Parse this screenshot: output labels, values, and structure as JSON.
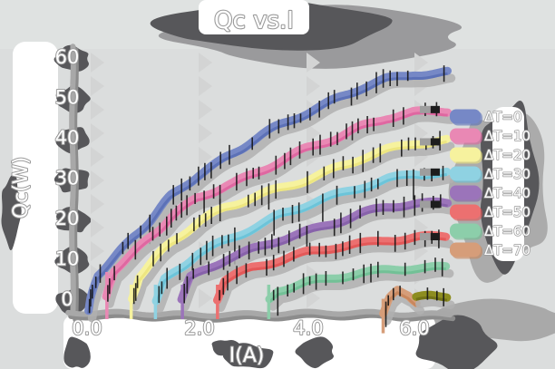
{
  "figure": {
    "background": "#dbdddd",
    "style_note": "hand-drawn sketch style, pastel thick lines with gray drop shadows, dark blobs behind white outlined text, black error-bar ticks along curves"
  },
  "chart_data": {
    "type": "line",
    "title": "Qc vs.I",
    "xlabel": "I(A)",
    "ylabel": "Qc(W)",
    "xticks": [
      "0.0",
      "2.0",
      "4.0",
      "6.0"
    ],
    "xtick_values": [
      0,
      2,
      4,
      6
    ],
    "yticks": [
      "0",
      "10",
      "20",
      "30",
      "40",
      "50",
      "60"
    ],
    "ytick_values": [
      0,
      10,
      20,
      30,
      40,
      50,
      60
    ],
    "xlim": [
      -0.35,
      6.7
    ],
    "ylim": [
      -3.5,
      63
    ],
    "grid": "faint sawtooth vertical gridlines at x ticks",
    "legend_position": "right",
    "error_bars": true,
    "series": [
      {
        "name": "ΔT=0",
        "color": "#7688c6",
        "edge": "#5a6fb5",
        "points": [
          [
            -0.05,
            -2.8
          ],
          [
            0,
            0
          ],
          [
            0.15,
            6
          ],
          [
            0.5,
            11
          ],
          [
            1,
            18
          ],
          [
            1.5,
            25.5
          ],
          [
            2,
            31
          ],
          [
            2.5,
            35.5
          ],
          [
            3,
            39.5
          ],
          [
            3.5,
            43
          ],
          [
            4,
            46
          ],
          [
            4.5,
            49
          ],
          [
            5,
            52
          ],
          [
            5.5,
            54.5
          ],
          [
            6,
            56
          ],
          [
            6.6,
            56.5
          ]
        ]
      },
      {
        "name": "ΔT=10",
        "color": "#e988b4",
        "edge": "#de649f",
        "points": [
          [
            0.3,
            0
          ],
          [
            0.45,
            7
          ],
          [
            1,
            14
          ],
          [
            1.5,
            20.5
          ],
          [
            2,
            25.5
          ],
          [
            2.5,
            28.5
          ],
          [
            3,
            31
          ],
          [
            3.5,
            34
          ],
          [
            4,
            37
          ],
          [
            4.5,
            39.5
          ],
          [
            5,
            42.5
          ],
          [
            5.5,
            45
          ],
          [
            6,
            46.5
          ],
          [
            6.6,
            47
          ]
        ]
      },
      {
        "name": "ΔT=20",
        "color": "#f6f29e",
        "edge": "#ece47c",
        "points": [
          [
            0.75,
            0
          ],
          [
            0.9,
            6
          ],
          [
            1.5,
            14
          ],
          [
            2,
            19
          ],
          [
            2.5,
            22.5
          ],
          [
            3,
            25
          ],
          [
            3.5,
            27.5
          ],
          [
            4,
            30
          ],
          [
            4.5,
            32.5
          ],
          [
            5,
            35
          ],
          [
            5.5,
            37
          ],
          [
            6,
            38.5
          ],
          [
            6.6,
            39
          ]
        ]
      },
      {
        "name": "ΔT=30",
        "color": "#8fd2e2",
        "edge": "#68c2d8",
        "points": [
          [
            1.2,
            0
          ],
          [
            1.35,
            5
          ],
          [
            2,
            11.5
          ],
          [
            2.5,
            14.5
          ],
          [
            3,
            17.5
          ],
          [
            3.5,
            20.5
          ],
          [
            4,
            23
          ],
          [
            4.5,
            25.5
          ],
          [
            5,
            28
          ],
          [
            5.5,
            30
          ],
          [
            6,
            31.5
          ],
          [
            6.6,
            31.5
          ]
        ]
      },
      {
        "name": "ΔT=40",
        "color": "#9b74ba",
        "edge": "#8560a8",
        "points": [
          [
            1.7,
            0
          ],
          [
            1.85,
            5
          ],
          [
            2.5,
            10
          ],
          [
            3,
            12.5
          ],
          [
            3.5,
            15
          ],
          [
            4,
            17
          ],
          [
            4.5,
            19
          ],
          [
            5,
            21
          ],
          [
            5.5,
            22.5
          ],
          [
            6,
            23.5
          ],
          [
            6.6,
            23.5
          ]
        ]
      },
      {
        "name": "ΔT=50",
        "color": "#ec7070",
        "edge": "#e25555",
        "points": [
          [
            2.35,
            0
          ],
          [
            2.5,
            4.5
          ],
          [
            3,
            7.5
          ],
          [
            3.5,
            9.5
          ],
          [
            4,
            11.5
          ],
          [
            4.5,
            13
          ],
          [
            5,
            14
          ],
          [
            5.5,
            15
          ],
          [
            6,
            15.5
          ],
          [
            6.6,
            15.5
          ]
        ]
      },
      {
        "name": "ΔT=60",
        "color": "#8cceaa",
        "edge": "#6fbf93",
        "points": [
          [
            3.3,
            0
          ],
          [
            3.45,
            2.5
          ],
          [
            4,
            4.5
          ],
          [
            4.5,
            5.5
          ],
          [
            5,
            6.5
          ],
          [
            5.5,
            7
          ],
          [
            6,
            7.5
          ],
          [
            6.6,
            7.5
          ]
        ]
      },
      {
        "name": "ΔT=70",
        "color": "#d69d79",
        "edge": "#c8855a",
        "points": [
          [
            5.42,
            -3.5
          ],
          [
            5.55,
            0
          ],
          [
            5.7,
            2
          ],
          [
            5.9,
            1
          ],
          [
            6.05,
            -0.8
          ]
        ]
      },
      {
        "name": "",
        "color": "#8d8d20",
        "edge": "#6f6f15",
        "points": [
          [
            6.02,
            0.5
          ],
          [
            6.3,
            0.8
          ],
          [
            6.62,
            0.7
          ]
        ],
        "note": "small unlabeled olive flat segment near Qc=0 at right edge"
      }
    ]
  }
}
